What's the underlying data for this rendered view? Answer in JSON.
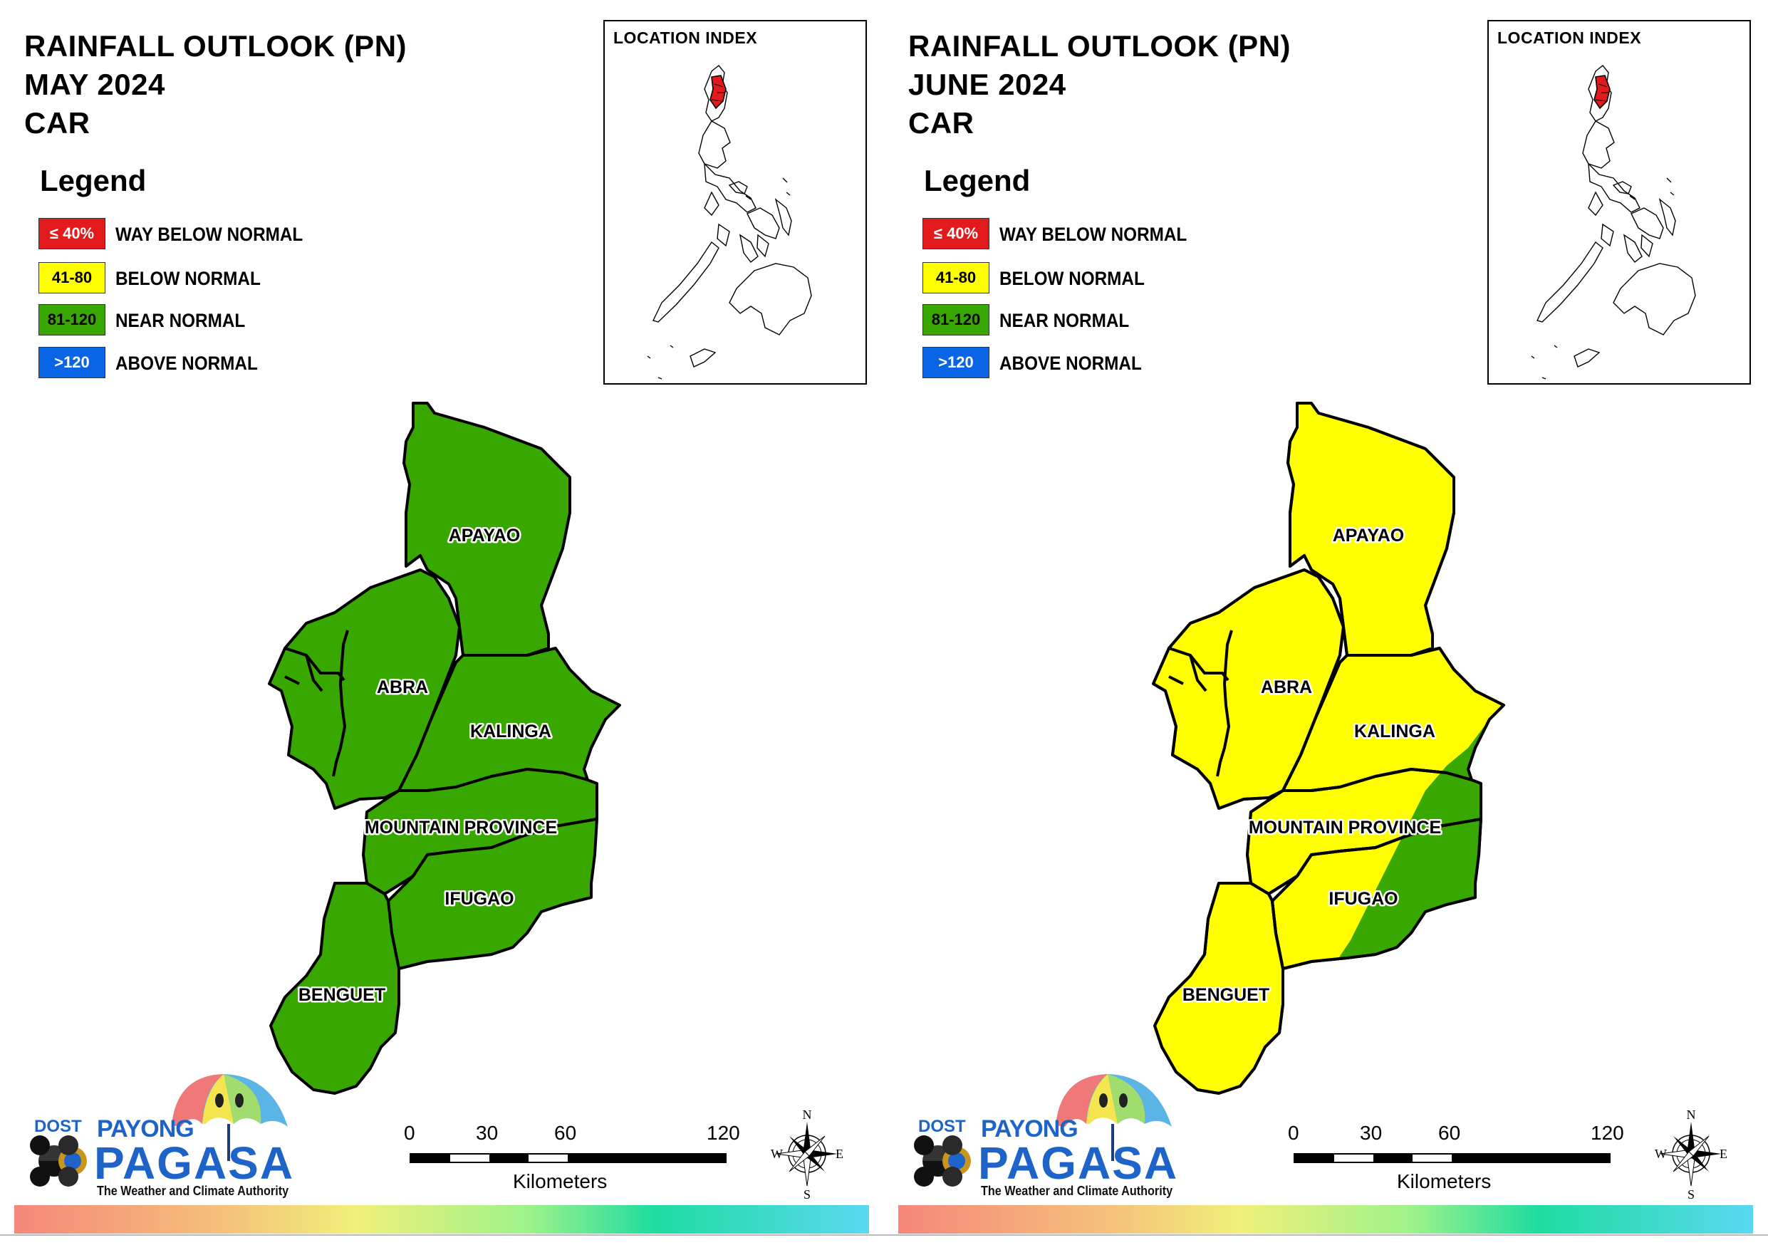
{
  "panels": [
    {
      "title_lines": [
        "RAINFALL OUTLOOK (PN)",
        "MAY 2024",
        "CAR"
      ],
      "provinces": {
        "apayao": {
          "label": "APAYAO",
          "category": "near_normal"
        },
        "abra": {
          "label": "ABRA",
          "category": "near_normal"
        },
        "kalinga": {
          "label": "KALINGA",
          "category": "near_normal"
        },
        "mountain_province": {
          "label": "MOUNTAIN PROVINCE",
          "category": "near_normal"
        },
        "ifugao": {
          "label": "IFUGAO",
          "category": "near_normal"
        },
        "benguet": {
          "label": "BENGUET",
          "category": "near_normal"
        }
      }
    },
    {
      "title_lines": [
        "RAINFALL OUTLOOK (PN)",
        "JUNE 2024",
        "CAR"
      ],
      "provinces": {
        "apayao": {
          "label": "APAYAO",
          "category": "below_normal"
        },
        "abra": {
          "label": "ABRA",
          "category": "below_normal"
        },
        "kalinga": {
          "label": "KALINGA",
          "category": "below_normal, eastern edge near_normal"
        },
        "mountain_province": {
          "label": "MOUNTAIN PROVINCE",
          "category": "below_normal, eastern part near_normal"
        },
        "ifugao": {
          "label": "IFUGAO",
          "category": "below_normal, eastern part near_normal"
        },
        "benguet": {
          "label": "BENGUET",
          "category": "below_normal"
        }
      }
    }
  ],
  "legend": {
    "title": "Legend",
    "items": [
      {
        "range": "≤ 40%",
        "label": "WAY BELOW NORMAL",
        "color": "#e31a1c",
        "text_color": "#ffffff"
      },
      {
        "range": "41-80",
        "label": "BELOW NORMAL",
        "color": "#ffff00",
        "text_color": "#000000"
      },
      {
        "range": "81-120",
        "label": "NEAR NORMAL",
        "color": "#38a800",
        "text_color": "#000000"
      },
      {
        "range": ">120",
        "label": "ABOVE NORMAL",
        "color": "#0a64e6",
        "text_color": "#ffffff"
      }
    ]
  },
  "colors": {
    "near_normal": "#38a800",
    "below_normal": "#ffff00",
    "boundary": "#000000",
    "index_highlight": "#e31a1c"
  },
  "location_index": {
    "title": "LOCATION INDEX"
  },
  "scale_bar": {
    "ticks": [
      "0",
      "30",
      "60",
      "120"
    ],
    "unit": "Kilometers"
  },
  "north_arrow": {
    "n": "N",
    "e": "E",
    "s": "S",
    "w": "W"
  },
  "logo": {
    "dost": "DOST",
    "payong": "PAYONG",
    "pagasa": "PAGASA",
    "tagline": "The Weather and Climate Authority"
  }
}
